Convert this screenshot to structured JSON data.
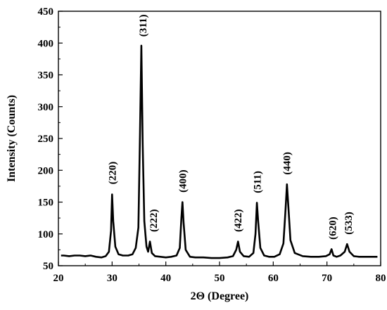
{
  "chart_data": {
    "type": "line",
    "title": "",
    "xlabel": "2Θ (Degree)",
    "ylabel": "Intensity (Counts)",
    "xlim": [
      20,
      80
    ],
    "ylim": [
      50,
      450
    ],
    "xticks": [
      20,
      30,
      40,
      50,
      60,
      70,
      80
    ],
    "yticks": [
      50,
      100,
      150,
      200,
      250,
      300,
      350,
      400,
      450
    ],
    "grid": false,
    "line_color": "#000000",
    "series": [
      {
        "x": [
          20.5,
          21,
          22,
          23,
          24,
          25,
          26,
          27,
          28,
          28.8,
          29.4,
          29.8,
          30.0,
          30.2,
          30.6,
          31.2,
          32,
          33,
          33.8,
          34.4,
          34.9,
          35.2,
          35.45,
          35.7,
          36.0,
          36.4,
          36.7,
          37.05,
          37.4,
          38,
          39,
          40,
          41,
          42,
          42.6,
          42.9,
          43.1,
          43.3,
          43.7,
          44.5,
          45.5,
          47,
          48.5,
          50,
          51.5,
          52.5,
          53.1,
          53.45,
          53.8,
          54.5,
          55.5,
          56.3,
          56.7,
          56.95,
          57.2,
          57.6,
          58.3,
          59.2,
          60.2,
          61.2,
          61.9,
          62.3,
          62.55,
          62.8,
          63.2,
          64,
          65.5,
          67,
          68.5,
          69.8,
          70.5,
          70.85,
          71.2,
          71.8,
          72.5,
          73.3,
          73.75,
          74.2,
          75,
          76,
          77,
          78,
          79.4
        ],
        "y": [
          66,
          66,
          65,
          66,
          66,
          65,
          66,
          64,
          63,
          65,
          72,
          105,
          162,
          120,
          80,
          68,
          66,
          66,
          68,
          78,
          110,
          260,
          396,
          240,
          120,
          80,
          72,
          88,
          70,
          65,
          64,
          63,
          64,
          66,
          78,
          125,
          150,
          118,
          75,
          64,
          63,
          63,
          62,
          62,
          63,
          65,
          75,
          88,
          72,
          65,
          64,
          70,
          100,
          149,
          118,
          78,
          66,
          64,
          64,
          68,
          85,
          140,
          178,
          145,
          90,
          70,
          65,
          64,
          64,
          65,
          68,
          76,
          66,
          64,
          66,
          72,
          84,
          72,
          65,
          64,
          64,
          64,
          64
        ]
      }
    ],
    "annotations": [
      {
        "text": "(220)",
        "x": 30.0,
        "y": 178
      },
      {
        "text": "(311)",
        "x": 35.7,
        "y": 410
      },
      {
        "text": "(222)",
        "x": 37.7,
        "y": 103
      },
      {
        "text": "(400)",
        "x": 43.1,
        "y": 165
      },
      {
        "text": "(422)",
        "x": 53.4,
        "y": 103
      },
      {
        "text": "(511)",
        "x": 57.0,
        "y": 164
      },
      {
        "text": "(440)",
        "x": 62.5,
        "y": 193
      },
      {
        "text": "(620)",
        "x": 71.0,
        "y": 91
      },
      {
        "text": "(533)",
        "x": 74.0,
        "y": 99
      }
    ]
  }
}
